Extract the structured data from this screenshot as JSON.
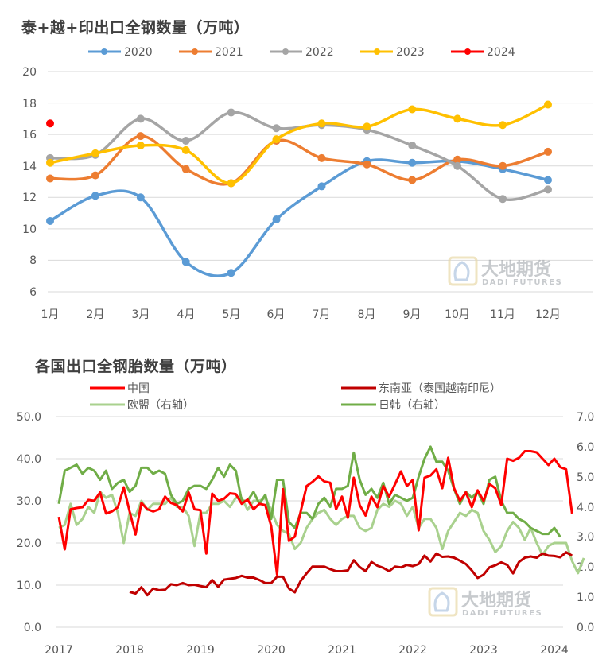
{
  "chart_data": [
    {
      "type": "line",
      "title": "泰+越+印出口全钢数量（万吨）",
      "xlabel": "",
      "ylabel": "",
      "categories": [
        "1月",
        "2月",
        "3月",
        "4月",
        "5月",
        "6月",
        "7月",
        "8月",
        "9月",
        "10月",
        "11月",
        "12月"
      ],
      "ylim": [
        6,
        20
      ],
      "yticks": [
        6,
        8,
        10,
        12,
        14,
        16,
        18,
        20
      ],
      "grid": true,
      "smooth": true,
      "legend_position": "top",
      "series": [
        {
          "name": "2020",
          "color": "#5B9BD5",
          "values": [
            10.5,
            12.1,
            12.0,
            7.9,
            7.2,
            10.6,
            12.7,
            14.3,
            14.2,
            14.3,
            13.8,
            13.1
          ]
        },
        {
          "name": "2021",
          "color": "#ED7D31",
          "values": [
            13.2,
            13.4,
            15.9,
            13.8,
            12.9,
            15.6,
            14.5,
            14.1,
            13.1,
            14.4,
            14.0,
            14.9
          ]
        },
        {
          "name": "2022",
          "color": "#A5A5A5",
          "values": [
            14.5,
            14.7,
            17.0,
            15.6,
            17.4,
            16.4,
            16.6,
            16.3,
            15.3,
            14.0,
            11.9,
            12.5
          ]
        },
        {
          "name": "2023",
          "color": "#FFC000",
          "values": [
            14.2,
            14.8,
            15.3,
            15.0,
            12.9,
            15.7,
            16.7,
            16.5,
            17.6,
            17.0,
            16.6,
            17.9
          ]
        },
        {
          "name": "2024",
          "color": "#FF0000",
          "values": [
            16.7
          ]
        }
      ]
    },
    {
      "type": "line",
      "title": "各国出口全钢胎数量（万吨）",
      "xlabel": "",
      "ylabel": "",
      "x_tick_labels": [
        "2017",
        "2018",
        "2019",
        "2020",
        "2021",
        "2022",
        "2023",
        "2024"
      ],
      "x_start": "2017-01",
      "x_frequency": "monthly",
      "ylim": [
        0,
        50
      ],
      "yticks": [
        0.0,
        10.0,
        20.0,
        30.0,
        40.0,
        50.0
      ],
      "y2lim": [
        0,
        7
      ],
      "y2ticks": [
        0.0,
        1.0,
        2.0,
        3.0,
        4.0,
        5.0,
        6.0,
        7.0
      ],
      "grid": true,
      "legend_position": "top",
      "series": [
        {
          "name": "中国",
          "axis": "left",
          "color": "#FF0000",
          "start": "2017-01",
          "values": [
            26.2,
            18.5,
            28.0,
            28.3,
            28.5,
            30.2,
            30.0,
            32.0,
            27.0,
            27.5,
            28.5,
            33.2,
            27.5,
            22.0,
            29.5,
            28.0,
            27.5,
            28.0,
            31.0,
            29.5,
            29.0,
            27.5,
            32.0,
            28.0,
            27.8,
            17.5,
            31.7,
            30.0,
            30.5,
            31.8,
            31.6,
            29.3,
            30.3,
            28.0,
            29.3,
            29.0,
            24.0,
            12.5,
            32.8,
            20.5,
            21.5,
            27.5,
            33.5,
            34.5,
            35.8,
            34.6,
            34.3,
            28.0,
            31.0,
            26.0,
            35.5,
            29.0,
            26.5,
            31.0,
            28.5,
            33.5,
            31.0,
            34.0,
            37.0,
            33.5,
            35.0,
            23.0,
            35.5,
            36.0,
            37.5,
            33.0,
            40.2,
            33.0,
            30.0,
            32.0,
            28.5,
            32.5,
            30.0,
            34.0,
            33.0,
            29.0,
            40.0,
            39.5,
            40.2,
            41.8,
            41.8,
            41.5,
            40.0,
            38.5,
            40.0,
            38.0,
            37.5,
            27.0
          ]
        },
        {
          "name": "东南亚（泰国越南印尼）",
          "axis": "left",
          "color": "#C00000",
          "start": "2018-01",
          "values": [
            8.4,
            8.0,
            9.5,
            7.6,
            9.2,
            8.8,
            8.9,
            10.2,
            10.0,
            10.5,
            10.0,
            10.1,
            9.8,
            9.5,
            11.2,
            9.6,
            11.3,
            11.5,
            11.7,
            12.2,
            11.8,
            11.8,
            11.2,
            10.5,
            10.5,
            12.0,
            12.0,
            9.2,
            8.3,
            11.0,
            12.8,
            14.4,
            14.4,
            14.4,
            13.8,
            13.3,
            13.3,
            13.5,
            15.9,
            14.3,
            13.3,
            15.5,
            14.6,
            14.1,
            13.3,
            14.4,
            14.2,
            14.8,
            14.5,
            15.0,
            17.0,
            15.6,
            17.5,
            16.7,
            16.8,
            16.5,
            15.8,
            15.0,
            13.5,
            11.7,
            12.5,
            14.2,
            14.7,
            15.4,
            14.8,
            12.8,
            15.5,
            16.5,
            16.8,
            16.5,
            17.5,
            17.0,
            16.9,
            16.6,
            17.8,
            17.0
          ]
        },
        {
          "name": "欧盟（右轴）",
          "axis": "right",
          "color": "#A9D18E",
          "start": "2017-01",
          "values": [
            3.3,
            3.4,
            4.1,
            3.4,
            3.6,
            4.0,
            3.8,
            4.5,
            4.3,
            4.4,
            3.8,
            2.8,
            3.8,
            3.7,
            4.2,
            3.9,
            4.1,
            4.1,
            4.1,
            4.3,
            4.0,
            4.0,
            3.7,
            2.7,
            3.8,
            3.8,
            4.1,
            4.1,
            4.2,
            4.0,
            4.3,
            4.3,
            3.9,
            4.2,
            4.2,
            4.3,
            3.9,
            3.4,
            3.2,
            3.1,
            2.6,
            2.8,
            3.3,
            3.6,
            3.8,
            3.9,
            3.6,
            3.4,
            3.6,
            3.7,
            3.7,
            3.3,
            3.2,
            3.3,
            3.9,
            4.1,
            4.0,
            4.2,
            4.1,
            3.7,
            4.0,
            3.3,
            3.6,
            3.6,
            3.3,
            2.6,
            3.2,
            3.5,
            3.8,
            3.7,
            3.9,
            3.8,
            3.2,
            2.9,
            2.5,
            2.7,
            3.2,
            3.5,
            3.3,
            2.9,
            3.3,
            2.8,
            2.4,
            2.7,
            2.8,
            2.8,
            2.8,
            2.2,
            1.8,
            2.3
          ]
        },
        {
          "name": "日韩（右轴）",
          "axis": "right",
          "color": "#70AD47",
          "start": "2017-01",
          "values": [
            4.1,
            5.2,
            5.3,
            5.4,
            5.1,
            5.3,
            5.2,
            4.9,
            5.2,
            4.6,
            4.8,
            4.9,
            4.5,
            4.7,
            5.3,
            5.3,
            5.1,
            5.2,
            5.1,
            4.4,
            4.1,
            4.2,
            4.6,
            4.7,
            4.7,
            4.6,
            4.9,
            5.3,
            5.0,
            5.4,
            5.2,
            4.2,
            4.2,
            4.5,
            4.1,
            4.4,
            3.6,
            4.9,
            4.9,
            3.5,
            3.3,
            3.8,
            3.8,
            3.6,
            4.1,
            4.3,
            4.0,
            4.6,
            4.6,
            4.7,
            5.8,
            4.9,
            4.4,
            4.6,
            4.3,
            4.8,
            4.1,
            4.4,
            4.3,
            4.2,
            4.3,
            5.0,
            5.6,
            6.0,
            5.5,
            5.5,
            5.2,
            4.6,
            4.1,
            4.5,
            4.3,
            4.5,
            4.1,
            4.9,
            5.0,
            4.2,
            3.8,
            3.8,
            3.6,
            3.5,
            3.3,
            3.2,
            3.1,
            3.1,
            3.3,
            3.0
          ]
        }
      ]
    }
  ],
  "chart1": {
    "title": "泰+越+印出口全钢数量（万吨）",
    "legend": [
      "2020",
      "2021",
      "2022",
      "2023",
      "2024"
    ],
    "y_ticks": [
      "20",
      "18",
      "16",
      "14",
      "12",
      "10",
      "8",
      "6"
    ],
    "x_ticks": [
      "1月",
      "2月",
      "3月",
      "4月",
      "5月",
      "6月",
      "7月",
      "8月",
      "9月",
      "10月",
      "11月",
      "12月"
    ]
  },
  "chart2": {
    "title": "各国出口全钢胎数量（万吨）",
    "legend": [
      "中国",
      "东南亚（泰国越南印尼）",
      "欧盟（右轴）",
      "日韩（右轴）"
    ],
    "y_ticks_left": [
      "50.0",
      "40.0",
      "30.0",
      "20.0",
      "10.0",
      "0.0"
    ],
    "y_ticks_right": [
      "7.0",
      "6.0",
      "5.0",
      "4.0",
      "3.0",
      "2.0",
      "1.0",
      "0.0"
    ],
    "x_ticks": [
      "2017",
      "2018",
      "2019",
      "2020",
      "2021",
      "2022",
      "2023",
      "2024"
    ]
  },
  "watermark": {
    "cn": "大地期货",
    "en": "DADI FUTURES"
  }
}
